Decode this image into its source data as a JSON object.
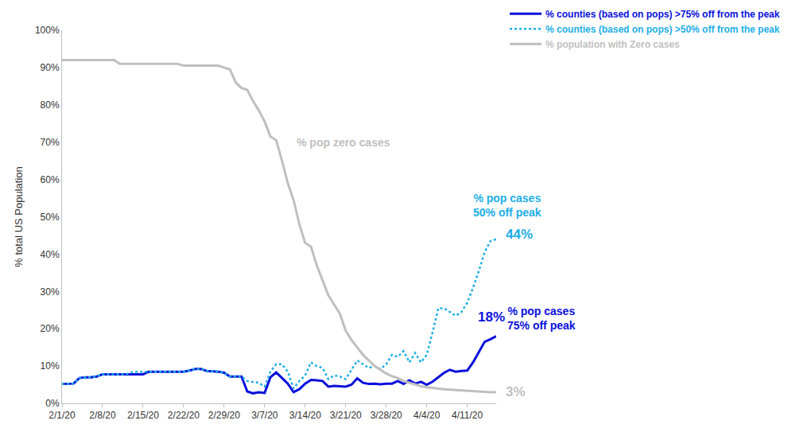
{
  "chart_data": {
    "type": "line",
    "y_label": "% total US Population",
    "categories": [
      "2/1/20",
      null,
      null,
      null,
      null,
      null,
      null,
      "2/8/20",
      null,
      null,
      null,
      null,
      null,
      null,
      "2/15/20",
      null,
      null,
      null,
      null,
      null,
      null,
      "2/22/20",
      null,
      null,
      null,
      null,
      null,
      null,
      "2/29/20",
      null,
      null,
      null,
      null,
      null,
      null,
      "3/7/20",
      null,
      null,
      null,
      null,
      null,
      null,
      "3/14/20",
      null,
      null,
      null,
      null,
      null,
      null,
      "3/21/20",
      null,
      null,
      null,
      null,
      null,
      null,
      "3/28/20",
      null,
      null,
      null,
      null,
      null,
      null,
      "4/4/20",
      null,
      null,
      null,
      null,
      null,
      null,
      "4/11/20",
      null,
      null,
      null,
      null,
      null
    ],
    "series": [
      {
        "name": "% counties (based on pops) >75% off from the peak",
        "color": "#0a10dc",
        "line_style": "solid",
        "values": [
          5.2,
          5.2,
          5.3,
          6.8,
          7,
          7,
          7.2,
          7.8,
          7.8,
          7.8,
          7.8,
          7.8,
          7.8,
          7.8,
          7.8,
          8.5,
          8.5,
          8.5,
          8.5,
          8.5,
          8.5,
          8.5,
          8.8,
          9.2,
          9.2,
          8.7,
          8.6,
          8.5,
          8.2,
          7.2,
          7.2,
          7.2,
          3.2,
          2.7,
          3,
          2.8,
          7,
          8.3,
          6.8,
          5.3,
          3,
          3.8,
          5.3,
          6.3,
          6.2,
          6,
          4.5,
          4.7,
          4.6,
          4.5,
          5,
          6.7,
          5.5,
          5.2,
          5.3,
          5.1,
          5.3,
          5.3,
          6,
          5.2,
          6.2,
          5.3,
          5.8,
          5,
          5.8,
          7,
          8.2,
          9,
          8.5,
          8.7,
          8.8,
          11,
          13.8,
          16.5,
          17.2,
          18
        ],
        "value_labels": [
          null,
          null,
          null,
          null,
          null,
          null,
          null,
          null,
          null,
          null,
          null,
          null,
          null,
          null,
          null,
          null,
          null,
          null,
          null,
          null,
          null,
          null,
          null,
          null,
          null,
          null,
          null,
          null,
          null,
          null,
          null,
          null,
          null,
          null,
          null,
          null,
          null,
          null,
          null,
          null,
          null,
          null,
          null,
          null,
          null,
          null,
          null,
          null,
          null,
          null,
          null,
          null,
          null,
          null,
          null,
          null,
          null,
          null,
          null,
          null,
          null,
          null,
          null,
          null,
          null,
          null,
          null,
          null,
          null,
          null,
          null,
          null,
          null,
          null,
          null,
          "18%"
        ]
      },
      {
        "name": "% counties (based on pops) >50% off from the peak",
        "color": "#1eaee6",
        "line_style": "dot",
        "values": [
          5.2,
          5.2,
          5.3,
          6.8,
          7,
          7,
          7.2,
          7.8,
          7.8,
          7.8,
          7.8,
          7.8,
          8.3,
          8.5,
          8.5,
          8.5,
          8.5,
          8.5,
          8.5,
          8.5,
          8.5,
          8.5,
          8.8,
          9.2,
          9.2,
          8.7,
          8.6,
          8.5,
          8.2,
          7.2,
          7.2,
          7.2,
          6,
          5.8,
          5.5,
          4.5,
          8.5,
          10.5,
          10.5,
          8.5,
          4,
          6,
          7.5,
          11,
          10,
          9.5,
          6.5,
          7.5,
          7.2,
          6.5,
          9,
          11.5,
          10.5,
          9.5,
          10,
          9.2,
          10.5,
          13,
          12.5,
          14,
          11,
          13.5,
          11,
          13,
          19,
          25.5,
          25.5,
          24.5,
          23.5,
          24.5,
          27,
          31,
          35.5,
          40.5,
          43.5,
          44
        ],
        "value_labels": [
          null,
          null,
          null,
          null,
          null,
          null,
          null,
          null,
          null,
          null,
          null,
          null,
          null,
          null,
          null,
          null,
          null,
          null,
          null,
          null,
          null,
          null,
          null,
          null,
          null,
          null,
          null,
          null,
          null,
          null,
          null,
          null,
          null,
          null,
          null,
          null,
          null,
          null,
          null,
          null,
          null,
          null,
          null,
          null,
          null,
          null,
          null,
          null,
          null,
          null,
          null,
          null,
          null,
          null,
          null,
          null,
          null,
          null,
          null,
          null,
          null,
          null,
          null,
          null,
          null,
          null,
          null,
          null,
          null,
          null,
          null,
          null,
          null,
          null,
          null,
          "44%"
        ]
      },
      {
        "name": "% population with Zero cases",
        "color": "#bfbfbf",
        "line_style": "solid",
        "values": [
          92,
          92,
          92,
          92,
          92,
          92,
          92,
          92,
          92,
          92,
          91,
          91,
          91,
          91,
          91,
          91,
          91,
          91,
          91,
          91,
          91,
          90.5,
          90.5,
          90.5,
          90.5,
          90.5,
          90.5,
          90.5,
          90,
          89.5,
          86,
          84.5,
          84,
          81,
          78.5,
          75.5,
          71.5,
          70.5,
          65,
          59,
          54.5,
          48,
          43,
          42,
          37,
          33,
          29,
          26.5,
          24,
          19.5,
          17,
          15,
          13,
          11.5,
          10,
          9,
          8,
          7.3,
          6.8,
          6,
          5.5,
          5,
          4.6,
          4.3,
          4.1,
          3.9,
          3.8,
          3.7,
          3.6,
          3.4,
          3.3,
          3.2,
          3.1,
          3,
          3,
          3
        ],
        "value_labels": [
          null,
          null,
          null,
          null,
          null,
          null,
          null,
          null,
          null,
          null,
          null,
          null,
          null,
          null,
          null,
          null,
          null,
          null,
          null,
          null,
          null,
          null,
          null,
          null,
          null,
          null,
          null,
          null,
          null,
          null,
          null,
          null,
          null,
          null,
          null,
          null,
          null,
          null,
          null,
          null,
          null,
          null,
          null,
          null,
          null,
          null,
          null,
          null,
          null,
          null,
          null,
          null,
          null,
          null,
          null,
          null,
          null,
          null,
          null,
          null,
          null,
          null,
          null,
          null,
          null,
          null,
          null,
          null,
          null,
          null,
          null,
          null,
          null,
          null,
          null,
          "3%"
        ]
      }
    ],
    "annotations": [
      "% pop zero cases",
      "% pop cases\n50% off peak",
      "% pop cases\n75% off peak"
    ],
    "ylim": [
      0,
      100
    ],
    "yticks": [
      {
        "value": 0,
        "label": "0%"
      },
      {
        "value": 10,
        "label": "10%"
      },
      {
        "value": 20,
        "label": "20%"
      },
      {
        "value": 30,
        "label": "30%"
      },
      {
        "value": 40,
        "label": "40%"
      },
      {
        "value": 50,
        "label": "50%"
      },
      {
        "value": 60,
        "label": "60%"
      },
      {
        "value": 70,
        "label": "70%"
      },
      {
        "value": 80,
        "label": "80%"
      },
      {
        "value": 90,
        "label": "90%"
      },
      {
        "value": 100,
        "label": "100%"
      }
    ],
    "grid": false,
    "legend": "top right"
  }
}
